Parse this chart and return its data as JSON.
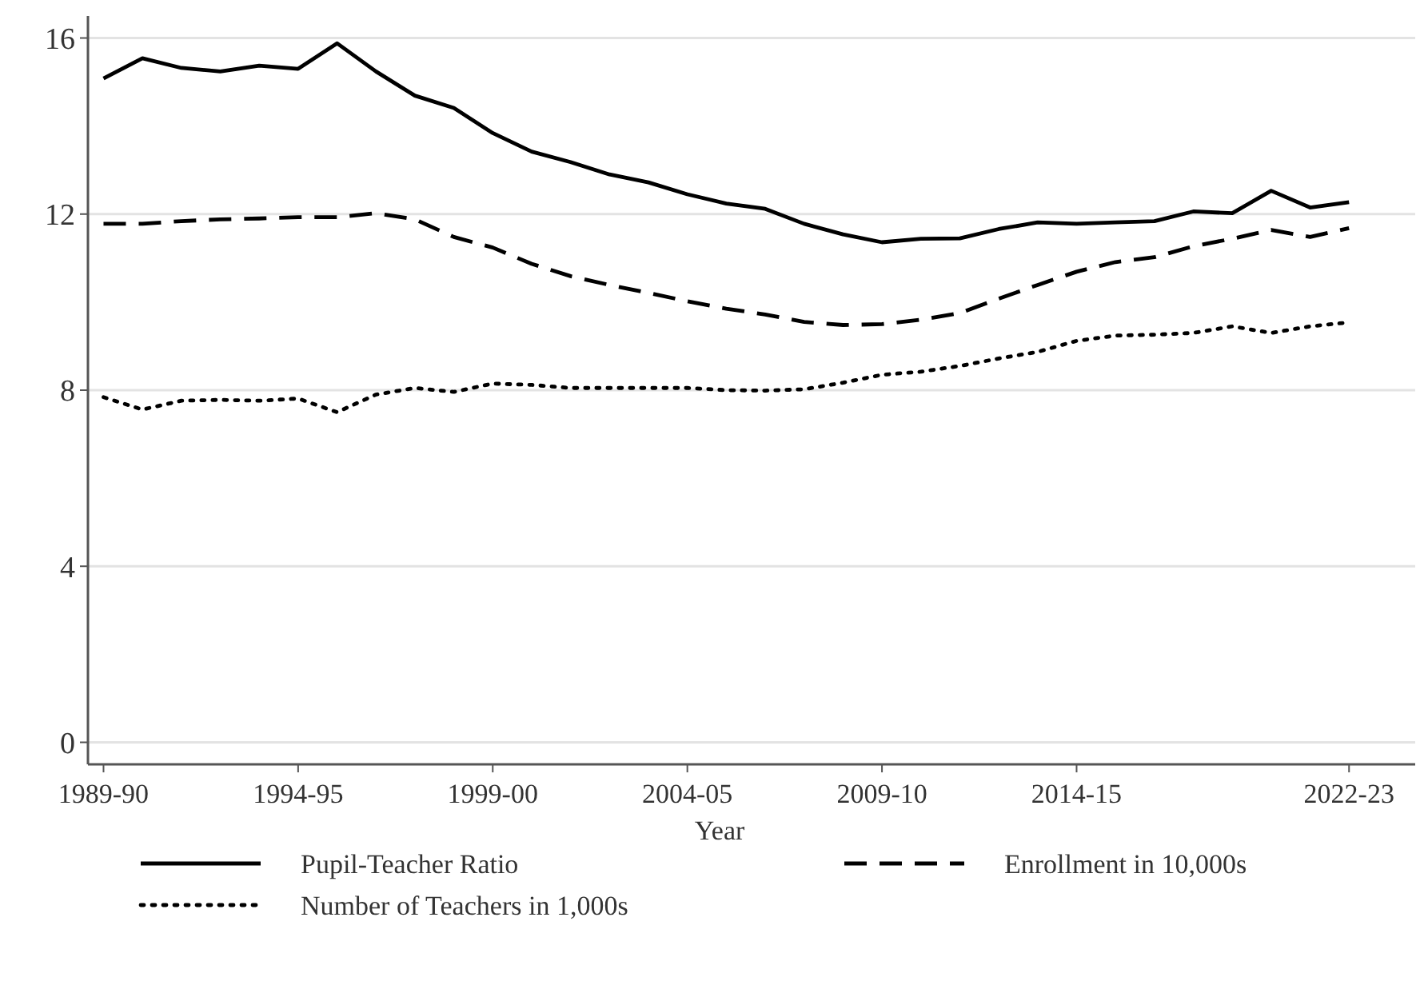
{
  "chart_data": {
    "type": "line",
    "xlabel": "Year",
    "categories": [
      "1989-90",
      null,
      null,
      null,
      null,
      "1994-95",
      null,
      null,
      null,
      null,
      "1999-00",
      null,
      null,
      null,
      null,
      "2004-05",
      null,
      null,
      null,
      null,
      "2009-10",
      null,
      null,
      null,
      null,
      "2014-15",
      null,
      null,
      null,
      null,
      null,
      null,
      "2022-23"
    ],
    "series": [
      {
        "name": "Pupil-Teacher Ratio",
        "color": "#000000",
        "line_style": "solid",
        "values": [
          15.08,
          15.54,
          15.32,
          15.24,
          15.37,
          15.3,
          15.88,
          15.24,
          14.69,
          14.41,
          13.84,
          13.42,
          13.18,
          12.9,
          12.72,
          12.45,
          12.24,
          12.12,
          11.78,
          11.54,
          11.36,
          11.44,
          11.45,
          11.66,
          11.81,
          11.78,
          11.81,
          11.84,
          12.06,
          12.02,
          12.53,
          12.15,
          12.27
        ]
      },
      {
        "name": "Enrollment in 10,000s",
        "color": "#000000",
        "line_style": "dashed",
        "values": [
          11.78,
          11.78,
          11.84,
          11.88,
          11.9,
          11.93,
          11.93,
          12.02,
          11.88,
          11.48,
          11.24,
          10.87,
          10.59,
          10.39,
          10.21,
          10.02,
          9.85,
          9.72,
          9.55,
          9.48,
          9.5,
          9.6,
          9.75,
          10.08,
          10.39,
          10.69,
          10.91,
          11.02,
          11.27,
          11.44,
          11.64,
          11.48,
          11.68
        ]
      },
      {
        "name": "Number of Teachers in 1,000s",
        "color": "#000000",
        "line_style": "dotted",
        "values": [
          7.84,
          7.56,
          7.76,
          7.78,
          7.76,
          7.81,
          7.5,
          7.9,
          8.05,
          7.96,
          8.15,
          8.12,
          8.05,
          8.05,
          8.05,
          8.05,
          8.0,
          7.99,
          8.02,
          8.17,
          8.35,
          8.42,
          8.55,
          8.72,
          8.87,
          9.12,
          9.24,
          9.26,
          9.3,
          9.45,
          9.3,
          9.45,
          9.54
        ]
      }
    ],
    "ylim": [
      -0.5,
      16.5
    ],
    "yticks": [
      0,
      4,
      8,
      12,
      16
    ],
    "grid": "y",
    "legend": "bottom",
    "marker": "none"
  }
}
